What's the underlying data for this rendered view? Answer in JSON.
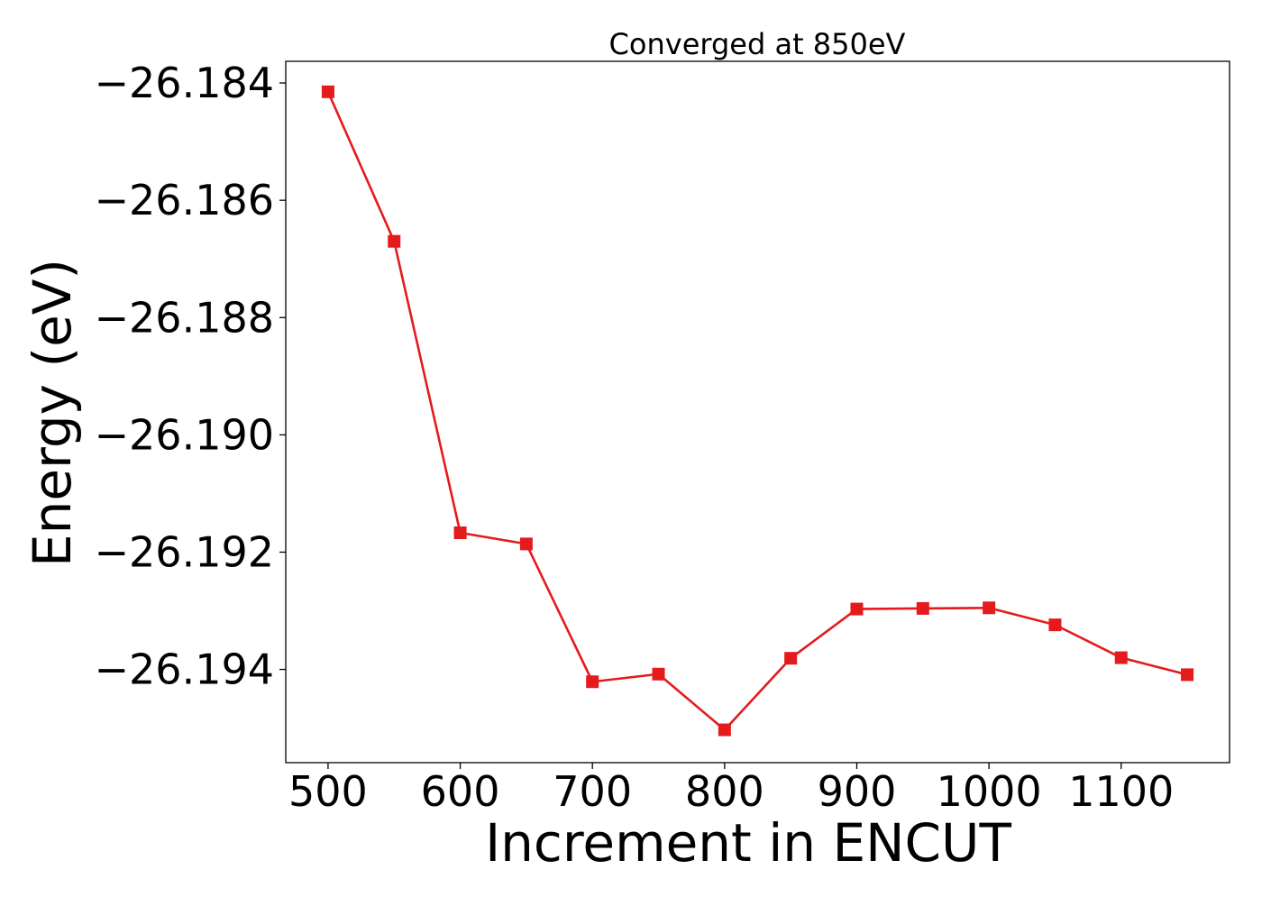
{
  "chart_data": {
    "type": "line",
    "title": "Converged at 850eV",
    "xlabel": "Increment in ENCUT",
    "ylabel": "Energy (eV)",
    "xlim": [
      468,
      1182
    ],
    "ylim": [
      -26.19559,
      -26.18363
    ],
    "x_ticks": [
      500,
      600,
      700,
      800,
      900,
      1000,
      1100
    ],
    "x_tick_labels": [
      "500",
      "600",
      "700",
      "800",
      "900",
      "1000",
      "1100"
    ],
    "y_ticks": [
      -26.184,
      -26.186,
      -26.188,
      -26.19,
      -26.192,
      -26.194
    ],
    "y_tick_labels": [
      "−26.184",
      "−26.186",
      "−26.188",
      "−26.190",
      "−26.192",
      "−26.194"
    ],
    "grid": false,
    "series": [
      {
        "color": "#e41a1c",
        "marker": "square",
        "x": [
          500,
          550,
          600,
          650,
          700,
          750,
          800,
          850,
          900,
          950,
          1000,
          1050,
          1100,
          1150
        ],
        "y": [
          -26.18415,
          -26.1867,
          -26.19167,
          -26.19186,
          -26.19421,
          -26.19408,
          -26.19503,
          -26.19381,
          -26.19297,
          -26.19296,
          -26.19295,
          -26.19324,
          -26.1938,
          -26.19409
        ]
      }
    ]
  }
}
